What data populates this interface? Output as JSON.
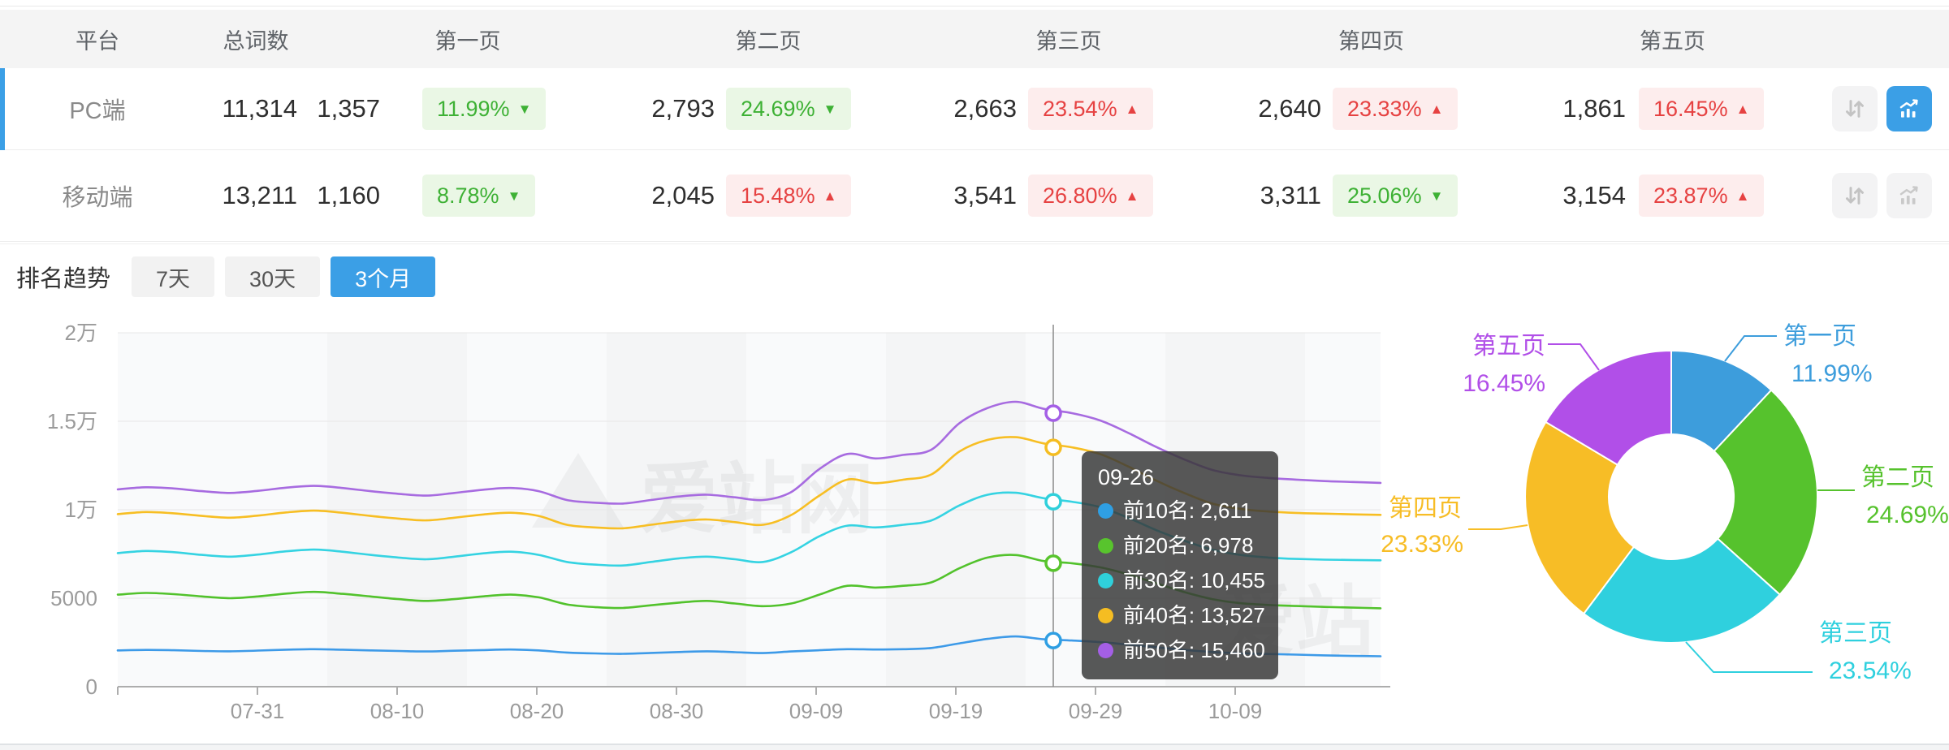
{
  "colors": {
    "accent": "#3b9fe6",
    "badge_green_text": "#3eb135",
    "badge_green_bg": "#eaf7e5",
    "badge_red_text": "#e64242",
    "badge_red_bg": "#fdeded"
  },
  "table": {
    "headers": [
      "平台",
      "总词数",
      "第一页",
      "第二页",
      "第三页",
      "第四页",
      "第五页"
    ],
    "rows": [
      {
        "platform": "PC端",
        "total": "11,314",
        "selected": true,
        "chart_button_active": true,
        "pages": [
          {
            "count": "1,357",
            "change": "11.99%",
            "direction": "down",
            "tone": "green"
          },
          {
            "count": "2,793",
            "change": "24.69%",
            "direction": "down",
            "tone": "green"
          },
          {
            "count": "2,663",
            "change": "23.54%",
            "direction": "up",
            "tone": "red"
          },
          {
            "count": "2,640",
            "change": "23.33%",
            "direction": "up",
            "tone": "red"
          },
          {
            "count": "1,861",
            "change": "16.45%",
            "direction": "up",
            "tone": "red"
          }
        ]
      },
      {
        "platform": "移动端",
        "total": "13,211",
        "selected": false,
        "chart_button_active": false,
        "pages": [
          {
            "count": "1,160",
            "change": "8.78%",
            "direction": "down",
            "tone": "green"
          },
          {
            "count": "2,045",
            "change": "15.48%",
            "direction": "up",
            "tone": "red"
          },
          {
            "count": "3,541",
            "change": "26.80%",
            "direction": "up",
            "tone": "red"
          },
          {
            "count": "3,311",
            "change": "25.06%",
            "direction": "down",
            "tone": "green"
          },
          {
            "count": "3,154",
            "change": "23.87%",
            "direction": "up",
            "tone": "red"
          }
        ]
      }
    ]
  },
  "trend": {
    "label": "排名趋势",
    "tabs": [
      {
        "label": "7天",
        "active": false
      },
      {
        "label": "30天",
        "active": false
      },
      {
        "label": "3个月",
        "active": true
      }
    ]
  },
  "watermark": "爱站网",
  "tooltip": {
    "title": "09-26",
    "items": [
      {
        "label": "前10名",
        "value": "2,611",
        "color": "#2f9fe3"
      },
      {
        "label": "前20名",
        "value": "6,978",
        "color": "#58c42d"
      },
      {
        "label": "前30名",
        "value": "10,455",
        "color": "#2fd0db"
      },
      {
        "label": "前40名",
        "value": "13,527",
        "color": "#f5bd22"
      },
      {
        "label": "前50名",
        "value": "15,460",
        "color": "#a45fe6"
      }
    ]
  },
  "chart_data": [
    {
      "type": "line",
      "title": "排名趋势 3个月",
      "x_tick_labels": [
        "07-31",
        "08-10",
        "08-20",
        "08-30",
        "09-09",
        "09-19",
        "09-29",
        "10-09"
      ],
      "x_start": "07-21",
      "x_end": "10-19",
      "point_interval_days": 2,
      "y_tick_labels": [
        "0",
        "5000",
        "1万",
        "1.5万",
        "2万"
      ],
      "ylim": [
        0,
        20000
      ],
      "grid": true,
      "legend_position": "none",
      "crosshair": {
        "date": "09-26",
        "x_fraction": 0.741
      },
      "series": [
        {
          "name": "前10名",
          "color": "#3d9ae8",
          "values": [
            2050,
            2080,
            2060,
            2020,
            2000,
            2040,
            2090,
            2120,
            2090,
            2050,
            2020,
            1990,
            2030,
            2070,
            2100,
            2050,
            1930,
            1880,
            1860,
            1910,
            1960,
            2000,
            1950,
            1900,
            1990,
            2060,
            2120,
            2100,
            2120,
            2190,
            2450,
            2700,
            2840,
            2680,
            2611,
            2520,
            2380,
            2230,
            2080,
            1960,
            1890,
            1850,
            1810,
            1770,
            1740,
            1720
          ]
        },
        {
          "name": "前20名",
          "color": "#52c22c",
          "values": [
            5200,
            5300,
            5230,
            5100,
            5000,
            5100,
            5260,
            5360,
            5250,
            5100,
            4950,
            4850,
            4950,
            5100,
            5200,
            5050,
            4650,
            4500,
            4450,
            4600,
            4750,
            4850,
            4700,
            4550,
            4700,
            5200,
            5700,
            5600,
            5700,
            5900,
            6700,
            7300,
            7440,
            7100,
            6978,
            6750,
            6350,
            5850,
            5350,
            4950,
            4720,
            4620,
            4560,
            4510,
            4470,
            4430
          ]
        },
        {
          "name": "前30名",
          "color": "#35d3e2",
          "values": [
            7550,
            7670,
            7600,
            7450,
            7350,
            7470,
            7650,
            7750,
            7630,
            7450,
            7300,
            7200,
            7350,
            7530,
            7630,
            7450,
            7050,
            6900,
            6850,
            7050,
            7250,
            7350,
            7200,
            7050,
            7600,
            8500,
            9100,
            9000,
            9150,
            9400,
            10250,
            10850,
            10960,
            10650,
            10455,
            10150,
            9550,
            8850,
            8250,
            7750,
            7450,
            7300,
            7220,
            7180,
            7160,
            7140
          ]
        },
        {
          "name": "前40名",
          "color": "#f7be23",
          "values": [
            9750,
            9870,
            9800,
            9650,
            9550,
            9670,
            9850,
            9950,
            9830,
            9650,
            9500,
            9400,
            9550,
            9730,
            9830,
            9650,
            9150,
            9000,
            8950,
            9150,
            9350,
            9450,
            9300,
            9150,
            9700,
            10800,
            11700,
            11500,
            11700,
            12000,
            13300,
            13950,
            14100,
            13750,
            13527,
            13150,
            12450,
            11650,
            10950,
            10350,
            10050,
            9900,
            9820,
            9780,
            9740,
            9710
          ]
        },
        {
          "name": "前50名",
          "color": "#a76be0",
          "values": [
            11150,
            11270,
            11200,
            11050,
            10950,
            11070,
            11250,
            11350,
            11230,
            11050,
            10900,
            10800,
            10950,
            11130,
            11230,
            11050,
            10550,
            10400,
            10350,
            10550,
            10750,
            10850,
            10700,
            10550,
            11000,
            12300,
            13150,
            12900,
            13100,
            13400,
            14900,
            15750,
            16100,
            15700,
            15460,
            15050,
            14350,
            13550,
            12850,
            12250,
            11950,
            11800,
            11700,
            11620,
            11570,
            11520
          ]
        }
      ]
    },
    {
      "type": "pie",
      "title": "页面分布 (PC端)",
      "inner_radius_ratio": 0.43,
      "start_angle": "top",
      "clockwise": true,
      "slices": [
        {
          "label": "第一页",
          "pct": 11.99,
          "pct_label": "11.99%",
          "color": "#3d9ddc"
        },
        {
          "label": "第二页",
          "pct": 24.69,
          "pct_label": "24.69%",
          "color": "#56c22d"
        },
        {
          "label": "第三页",
          "pct": 23.54,
          "pct_label": "23.54%",
          "color": "#2fd0de"
        },
        {
          "label": "第四页",
          "pct": 23.33,
          "pct_label": "23.33%",
          "color": "#f7bd26"
        },
        {
          "label": "第五页",
          "pct": 16.45,
          "pct_label": "16.45%",
          "color": "#b14fe8"
        }
      ]
    }
  ]
}
